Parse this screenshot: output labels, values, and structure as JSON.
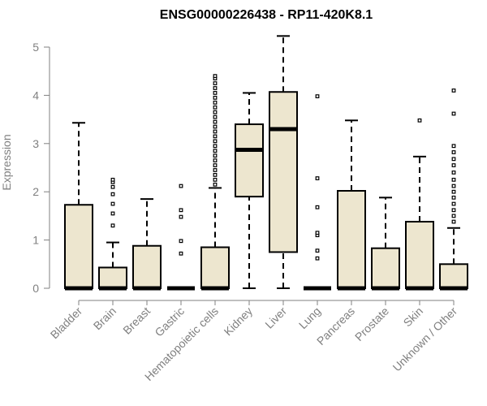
{
  "chart_data": {
    "type": "box",
    "title": "ENSG00000226438 - RP11-420K8.1",
    "ylabel": "Expression",
    "xlabel": "",
    "ylim": [
      0,
      5
    ],
    "yticks": [
      0,
      1,
      2,
      3,
      4,
      5
    ],
    "categories": [
      "Bladder",
      "Brain",
      "Breast",
      "Gastric",
      "Hematopoietic cells",
      "Kidney",
      "Liver",
      "Lung",
      "Pancreas",
      "Prostate",
      "Skin",
      "Unknown / Other"
    ],
    "colors": {
      "box_fill": "#ede6cf",
      "stroke": "#000000",
      "axis_text": "#808080"
    },
    "boxes": [
      {
        "category": "Bladder",
        "min": 0,
        "q1": 0,
        "median": 0,
        "q3": 1.73,
        "max": 3.43,
        "outliers": []
      },
      {
        "category": "Brain",
        "min": 0,
        "q1": 0,
        "median": 0,
        "q3": 0.43,
        "max": 0.95,
        "outliers": [
          1.3,
          1.55,
          1.75,
          1.95,
          2.1,
          2.2,
          2.25
        ]
      },
      {
        "category": "Breast",
        "min": 0,
        "q1": 0,
        "median": 0,
        "q3": 0.88,
        "max": 1.85,
        "outliers": []
      },
      {
        "category": "Gastric",
        "min": 0,
        "q1": 0,
        "median": 0,
        "q3": 0,
        "max": 0,
        "outliers": [
          0.72,
          0.98,
          1.48,
          1.62,
          2.12
        ]
      },
      {
        "category": "Hematopoietic cells",
        "min": 0,
        "q1": 0,
        "median": 0,
        "q3": 0.85,
        "max": 2.08,
        "outliers": [
          2.15,
          2.25,
          2.35,
          2.45,
          2.55,
          2.65,
          2.75,
          2.85,
          2.95,
          3.05,
          3.15,
          3.25,
          3.35,
          3.45,
          3.55,
          3.65,
          3.75,
          3.85,
          3.95,
          4.05,
          4.15,
          4.25,
          4.35,
          4.4
        ]
      },
      {
        "category": "Kidney",
        "min": 0,
        "q1": 1.9,
        "median": 2.87,
        "q3": 3.4,
        "max": 4.05,
        "outliers": []
      },
      {
        "category": "Liver",
        "min": 0,
        "q1": 0.75,
        "median": 3.3,
        "q3": 4.07,
        "max": 5.23,
        "outliers": []
      },
      {
        "category": "Lung",
        "min": 0,
        "q1": 0,
        "median": 0,
        "q3": 0,
        "max": 0,
        "outliers": [
          0.62,
          0.78,
          1.1,
          1.15,
          1.68,
          2.28,
          3.98
        ]
      },
      {
        "category": "Pancreas",
        "min": 0,
        "q1": 0,
        "median": 0,
        "q3": 2.02,
        "max": 3.48,
        "outliers": []
      },
      {
        "category": "Prostate",
        "min": 0,
        "q1": 0,
        "median": 0,
        "q3": 0.83,
        "max": 1.88,
        "outliers": []
      },
      {
        "category": "Skin",
        "min": 0,
        "q1": 0,
        "median": 0,
        "q3": 1.38,
        "max": 2.73,
        "outliers": [
          3.48
        ]
      },
      {
        "category": "Unknown / Other",
        "min": 0,
        "q1": 0,
        "median": 0,
        "q3": 0.5,
        "max": 1.25,
        "outliers": [
          1.38,
          1.5,
          1.62,
          1.75,
          1.88,
          2.0,
          2.12,
          2.25,
          2.4,
          2.55,
          2.68,
          2.82,
          2.95,
          3.62,
          4.1
        ]
      }
    ]
  }
}
